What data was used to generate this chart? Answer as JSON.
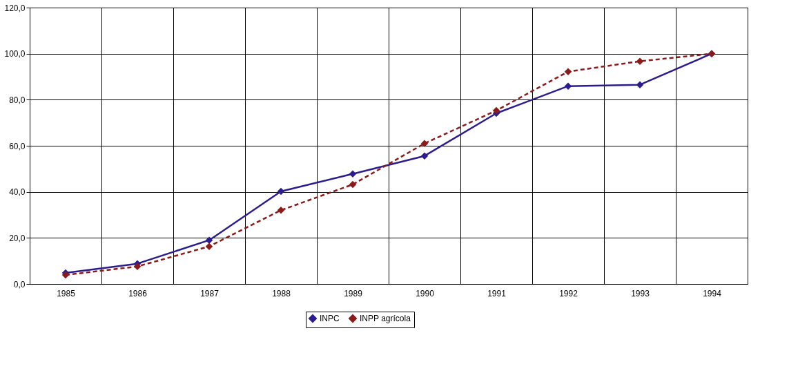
{
  "chart_data": {
    "type": "line",
    "categories": [
      "1985",
      "1986",
      "1987",
      "1988",
      "1989",
      "1990",
      "1991",
      "1992",
      "1993",
      "1994"
    ],
    "series": [
      {
        "name": "INPC",
        "color": "#2b1d8f",
        "line_style": "solid",
        "values": [
          4.8,
          8.8,
          19.0,
          40.2,
          47.8,
          55.6,
          74.1,
          85.9,
          86.5,
          100.0
        ]
      },
      {
        "name": "INPP agrícola",
        "color": "#8b1a1a",
        "line_style": "dashed",
        "values": [
          3.9,
          7.6,
          16.3,
          32.0,
          43.2,
          61.0,
          75.3,
          92.2,
          96.7,
          100.0
        ]
      }
    ],
    "ylim": [
      0,
      120
    ],
    "yticks": [
      {
        "value": 0,
        "label": "0,0"
      },
      {
        "value": 20,
        "label": "20,0"
      },
      {
        "value": 40,
        "label": "40,0"
      },
      {
        "value": 60,
        "label": "60,0"
      },
      {
        "value": 80,
        "label": "80,0"
      },
      {
        "value": 100,
        "label": "100,0"
      },
      {
        "value": 120,
        "label": "120,0"
      }
    ],
    "grid": true,
    "legend": "bottom",
    "marker": "diamond"
  }
}
